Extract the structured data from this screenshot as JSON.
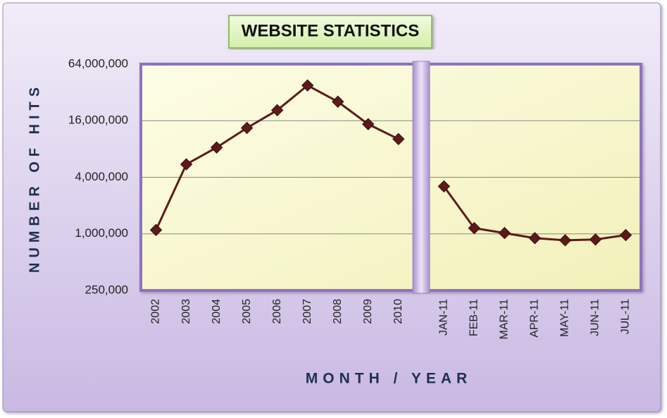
{
  "chart_data": {
    "type": "line",
    "title": "WEBSITE STATISTICS",
    "y_label": "NUMBER OF HITS",
    "x_label": "MONTH / YEAR",
    "categories": [
      "2002",
      "2003",
      "2004",
      "2005",
      "2006",
      "2007",
      "2008",
      "2009",
      "2010",
      null,
      "JAN-11",
      "FEB-11",
      "MAR-11",
      "APR-11",
      "MAY-11",
      "JUN-11",
      "JUL-11"
    ],
    "series": [
      {
        "name": "Number of Hits",
        "color": "#5c1a1a",
        "values": [
          1100000,
          5500000,
          8300000,
          13400000,
          20700000,
          38000000,
          25500000,
          14700000,
          10200000,
          null,
          3200000,
          1150000,
          1020000,
          900000,
          855000,
          870000,
          970000
        ]
      }
    ],
    "yscale": "log",
    "ylim": [
      250000,
      64000000
    ],
    "yticks": [
      {
        "value": 250000,
        "label": "250,000"
      },
      {
        "value": 1000000,
        "label": "1,000,000"
      },
      {
        "value": 4000000,
        "label": "4,000,000"
      },
      {
        "value": 16000000,
        "label": "16,000,000"
      },
      {
        "value": 64000000,
        "label": "64,000,000"
      }
    ],
    "grid": true
  }
}
